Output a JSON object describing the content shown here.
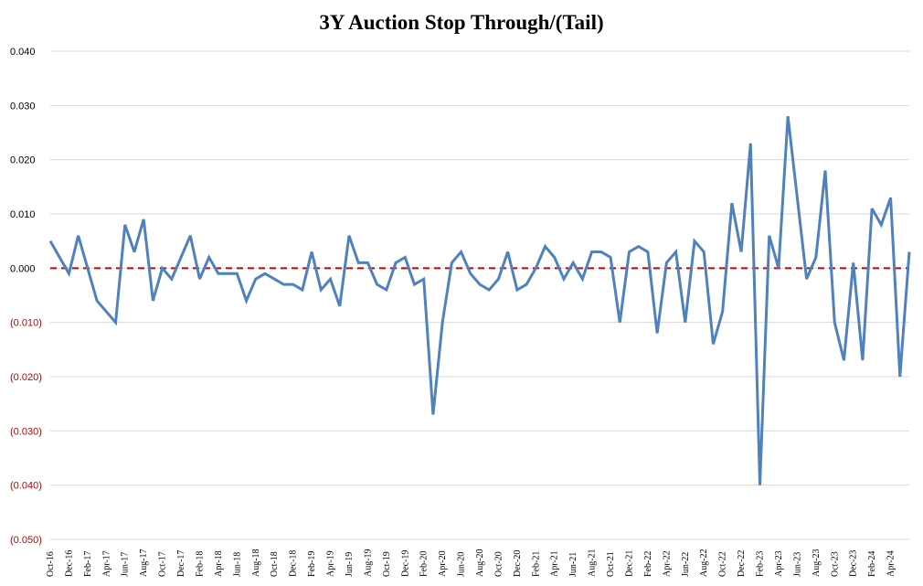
{
  "chart_data": {
    "type": "line",
    "title": "3Y Auction Stop Through/(Tail)",
    "xlabel": "",
    "ylabel": "",
    "ylim": [
      -0.05,
      0.04
    ],
    "y_ticks": [
      {
        "value": 0.04,
        "label": "0.040",
        "color": "#000000"
      },
      {
        "value": 0.03,
        "label": "0.030",
        "color": "#000000"
      },
      {
        "value": 0.02,
        "label": "0.020",
        "color": "#000000"
      },
      {
        "value": 0.01,
        "label": "0.010",
        "color": "#000000"
      },
      {
        "value": 0.0,
        "label": "0.000",
        "color": "#000000"
      },
      {
        "value": -0.01,
        "label": "(0.010)",
        "color": "#c00000"
      },
      {
        "value": -0.02,
        "label": "(0.020)",
        "color": "#c00000"
      },
      {
        "value": -0.03,
        "label": "(0.030)",
        "color": "#c00000"
      },
      {
        "value": -0.04,
        "label": "(0.040)",
        "color": "#c00000"
      },
      {
        "value": -0.05,
        "label": "(0.050)",
        "color": "#c00000"
      }
    ],
    "x_tick_labels": [
      "Oct-16",
      "Dec-16",
      "Feb-17",
      "Apr-17",
      "Jun-17",
      "Aug-17",
      "Oct-17",
      "Dec-17",
      "Feb-18",
      "Apr-18",
      "Jun-18",
      "Aug-18",
      "Oct-18",
      "Dec-18",
      "Feb-19",
      "Apr-19",
      "Jun-19",
      "Aug-19",
      "Oct-19",
      "Dec-19",
      "Feb-20",
      "Apr-20",
      "Jun-20",
      "Aug-20",
      "Oct-20",
      "Dec-20",
      "Feb-21",
      "Apr-21",
      "Jun-21",
      "Aug-21",
      "Oct-21",
      "Dec-21",
      "Feb-22",
      "Apr-22",
      "Jun-22",
      "Aug-22",
      "Oct-22",
      "Dec-22",
      "Feb-23",
      "Apr-23",
      "Jun-23",
      "Aug-23",
      "Oct-23",
      "Dec-23",
      "Feb-24",
      "Apr-24"
    ],
    "grid": true,
    "series": [
      {
        "name": "",
        "color": "#4f81bd",
        "values": [
          0.005,
          0.002,
          -0.001,
          0.006,
          0.0,
          -0.006,
          -0.008,
          -0.01,
          0.008,
          0.003,
          0.009,
          -0.006,
          0.0,
          -0.002,
          0.002,
          0.006,
          -0.002,
          0.002,
          -0.001,
          -0.001,
          -0.001,
          -0.006,
          -0.002,
          -0.001,
          -0.002,
          -0.003,
          -0.003,
          -0.004,
          0.003,
          -0.004,
          -0.002,
          -0.007,
          0.006,
          0.001,
          0.001,
          -0.003,
          -0.004,
          0.001,
          0.002,
          -0.003,
          -0.002,
          -0.027,
          -0.01,
          0.001,
          0.003,
          -0.001,
          -0.003,
          -0.004,
          -0.002,
          0.003,
          -0.004,
          -0.003,
          0.0,
          0.004,
          0.002,
          -0.002,
          0.001,
          -0.002,
          0.003,
          0.003,
          0.002,
          -0.01,
          0.003,
          0.004,
          0.003,
          -0.012,
          0.001,
          0.003,
          -0.01,
          0.005,
          0.003,
          -0.014,
          -0.008,
          0.012,
          0.003,
          0.023,
          -0.04,
          0.006,
          0.0,
          0.028,
          0.013,
          -0.002,
          0.002,
          0.018,
          -0.01,
          -0.017,
          0.001,
          -0.017,
          0.011,
          0.008,
          0.013,
          -0.02,
          0.003
        ]
      },
      {
        "name": "",
        "type": "reference-line",
        "color": "#cc0000",
        "value": 0.0
      }
    ]
  }
}
